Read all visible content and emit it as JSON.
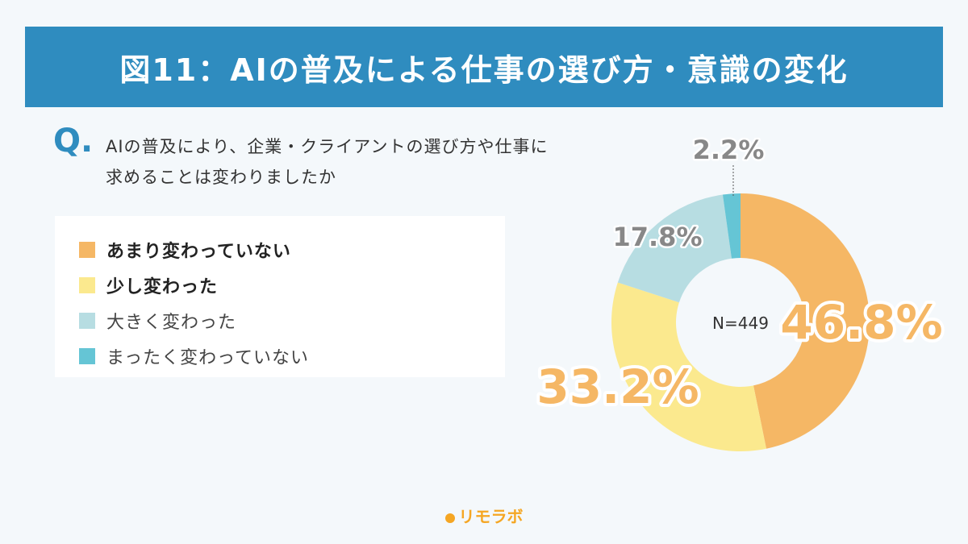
{
  "title": "図11：AIの普及による仕事の選び方・意識の変化",
  "question": {
    "mark": "Q.",
    "text": "AIの普及により、企業・クライアントの選び方や仕事に求めることは変わりましたか"
  },
  "legend": [
    {
      "label": "あまり変わっていない",
      "color": "#f5b765",
      "emphasis": true
    },
    {
      "label": "少し変わった",
      "color": "#fbe98e",
      "emphasis": true
    },
    {
      "label": "大きく変わった",
      "color": "#b7dde2",
      "emphasis": false
    },
    {
      "label": "まったく変わっていない",
      "color": "#65c5d5",
      "emphasis": false
    }
  ],
  "chart_data": {
    "type": "pie",
    "style": "donut",
    "center_label": "N=449",
    "slices": [
      {
        "name": "あまり変わっていない",
        "value": 46.8,
        "label": "46.8%",
        "color": "#f5b765",
        "label_color": "#f5b765"
      },
      {
        "name": "少し変わった",
        "value": 33.2,
        "label": "33.2%",
        "color": "#fbe98e",
        "label_color": "#f5b765"
      },
      {
        "name": "大きく変わった",
        "value": 17.8,
        "label": "17.8%",
        "color": "#b7dde2",
        "label_color": "#888888"
      },
      {
        "name": "まったく変わっていない",
        "value": 2.2,
        "label": "2.2%",
        "color": "#65c5d5",
        "label_color": "#888888"
      }
    ]
  },
  "brand": "リモラボ",
  "colors": {
    "title_bar": "#2f8cbf",
    "accent": "#f5a623"
  }
}
